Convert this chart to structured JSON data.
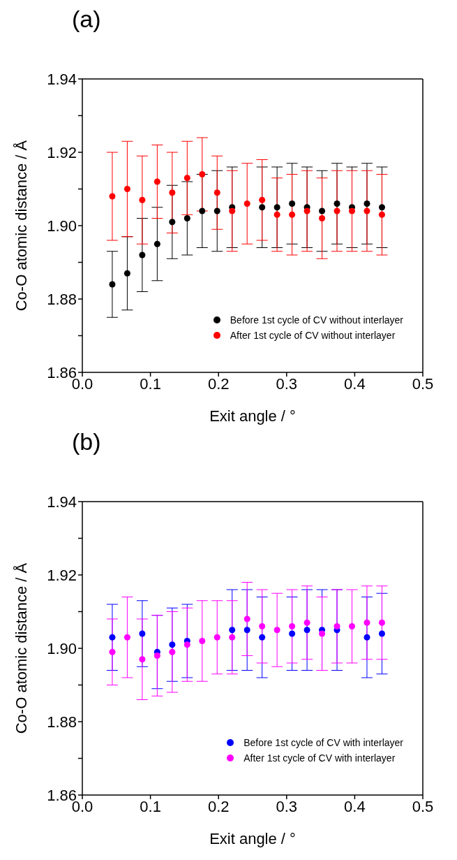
{
  "chart_data": [
    {
      "type": "scatter",
      "title": "(a)",
      "xlabel": "Exit angle / °",
      "ylabel": "Co-O atomic distance / Å",
      "x": [
        0.044,
        0.066,
        0.088,
        0.11,
        0.132,
        0.154,
        0.176,
        0.198,
        0.22,
        0.242,
        0.264,
        0.286,
        0.308,
        0.33,
        0.352,
        0.374,
        0.396,
        0.418,
        0.44
      ],
      "xlim": [
        0,
        0.5
      ],
      "xticks": [
        {
          "value": 0,
          "label": "0.0"
        },
        0.1,
        0.2,
        0.3,
        0.4,
        0.5
      ],
      "ylim": [
        1.86,
        1.94
      ],
      "yticks": [
        1.86,
        {
          "value": 1.87,
          "label": null
        },
        1.88,
        {
          "value": 1.89,
          "label": null
        },
        {
          "value": 1.9,
          "label": "1.90"
        },
        {
          "value": 1.91,
          "label": null
        },
        1.92,
        {
          "value": 1.93,
          "label": null
        },
        1.94
      ],
      "legend": "bottom right",
      "marker": "circle",
      "series": [
        {
          "name": "Before 1st cycle of CV without interlayer",
          "color": "#000000",
          "values": [
            1.884,
            1.887,
            1.892,
            1.895,
            1.901,
            1.902,
            1.904,
            1.904,
            1.905,
            null,
            1.905,
            1.905,
            1.906,
            1.905,
            1.904,
            1.906,
            1.905,
            1.906,
            1.905
          ],
          "errors": [
            0.009,
            0.01,
            0.01,
            0.01,
            0.01,
            0.01,
            0.01,
            0.011,
            0.011,
            null,
            0.011,
            0.011,
            0.011,
            0.011,
            0.011,
            0.011,
            0.011,
            0.011,
            0.011
          ]
        },
        {
          "name": "After 1st cycle of CV without interlayer",
          "color": "#ff0000",
          "values": [
            1.908,
            1.91,
            1.907,
            1.912,
            1.909,
            1.913,
            1.914,
            1.909,
            1.904,
            1.906,
            1.907,
            1.903,
            1.903,
            1.904,
            1.902,
            1.904,
            1.904,
            1.904,
            1.903
          ],
          "errors": [
            0.012,
            0.013,
            0.012,
            0.01,
            0.011,
            0.01,
            0.01,
            0.01,
            0.011,
            0.011,
            0.011,
            0.01,
            0.011,
            0.011,
            0.011,
            0.011,
            0.011,
            0.011,
            0.011
          ]
        }
      ]
    },
    {
      "type": "scatter",
      "title": "(b)",
      "xlabel": "Exit angle / °",
      "ylabel": "Co-O atomic distance / Å",
      "x": [
        0.044,
        0.066,
        0.088,
        0.11,
        0.132,
        0.154,
        0.176,
        0.198,
        0.22,
        0.242,
        0.264,
        0.286,
        0.308,
        0.33,
        0.352,
        0.374,
        0.396,
        0.418,
        0.44
      ],
      "xlim": [
        0,
        0.5
      ],
      "xticks": [
        {
          "value": 0,
          "label": "0.0"
        },
        0.1,
        0.2,
        0.3,
        0.4,
        0.5
      ],
      "ylim": [
        1.86,
        1.94
      ],
      "yticks": [
        1.86,
        {
          "value": 1.87,
          "label": null
        },
        1.88,
        {
          "value": 1.89,
          "label": null
        },
        {
          "value": 1.9,
          "label": "1.90"
        },
        {
          "value": 1.91,
          "label": null
        },
        1.92,
        {
          "value": 1.93,
          "label": null
        },
        1.94
      ],
      "legend": "bottom right",
      "marker": "circle",
      "series": [
        {
          "name": "Before 1st cycle of CV with interlayer",
          "color": "#0000ff",
          "values": [
            1.903,
            null,
            1.904,
            1.899,
            1.901,
            1.902,
            null,
            null,
            1.905,
            1.905,
            1.903,
            null,
            1.904,
            1.905,
            1.905,
            1.905,
            null,
            1.903,
            1.904
          ],
          "errors": [
            0.009,
            null,
            0.009,
            0.01,
            0.01,
            0.01,
            null,
            null,
            0.011,
            0.011,
            0.011,
            null,
            0.01,
            0.011,
            0.011,
            0.011,
            null,
            0.011,
            0.011
          ]
        },
        {
          "name": "After 1st cycle of CV with interlayer",
          "color": "#ff00ff",
          "values": [
            1.899,
            1.903,
            1.897,
            1.898,
            1.899,
            1.901,
            1.902,
            1.903,
            1.903,
            1.908,
            1.906,
            1.905,
            1.906,
            1.907,
            1.904,
            1.906,
            1.906,
            1.907,
            1.907
          ],
          "errors": [
            0.009,
            0.011,
            0.011,
            0.011,
            0.011,
            0.01,
            0.011,
            0.01,
            0.01,
            0.01,
            0.01,
            0.01,
            0.01,
            0.01,
            0.01,
            0.01,
            0.01,
            0.01,
            0.01
          ]
        }
      ]
    }
  ]
}
